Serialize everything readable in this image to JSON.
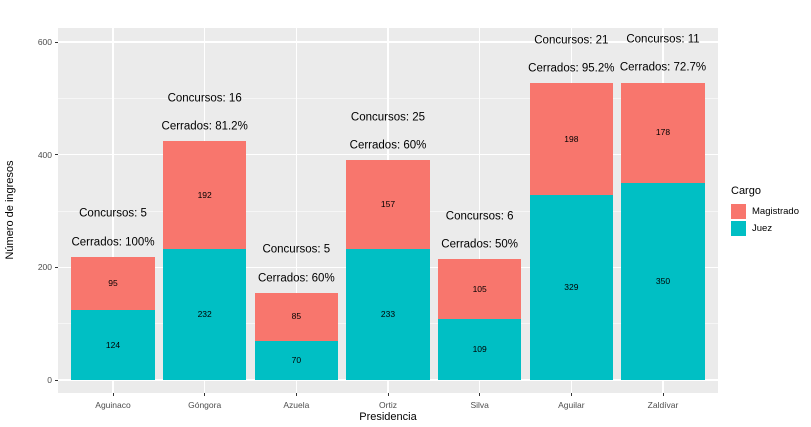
{
  "figure": {
    "background": "#FFFFFF",
    "panel_background": "#EBEBEB",
    "grid_major_color": "#FFFFFF",
    "grid_minor_color": "rgba(255,255,255,0.55)",
    "axis_text_color": "#4D4D4D",
    "tick_color": "#333333"
  },
  "chart_data": {
    "type": "bar",
    "stacked": true,
    "xlabel": "Presidencia",
    "ylabel": "Número de ingresos",
    "categories": [
      "Aguinaco",
      "Góngora",
      "Azuela",
      "Ortiz",
      "Silva",
      "Aguilar",
      "Zaldívar"
    ],
    "series": [
      {
        "name": "Juez",
        "color": "#00BFC4",
        "values": [
          124,
          232,
          70,
          233,
          109,
          329,
          350
        ]
      },
      {
        "name": "Magistrado",
        "color": "#F8766D",
        "values": [
          95,
          192,
          85,
          157,
          105,
          198,
          178
        ]
      }
    ],
    "totals": [
      219,
      424,
      155,
      390,
      214,
      527,
      528
    ],
    "annotations": {
      "concursos": [
        "Concursos: 5",
        "Concursos: 16",
        "Concursos: 5",
        "Concursos: 25",
        "Concursos: 6",
        "Concursos: 21",
        "Concursos: 11"
      ],
      "cerrados": [
        "Cerrados: 100%",
        "Cerrados: 81.2%",
        "Cerrados: 60%",
        "Cerrados: 60%",
        "Cerrados: 50%",
        "Cerrados: 95.2%",
        "Cerrados: 72.7%"
      ]
    },
    "annotation_offset_units": {
      "concursos": 75,
      "cerrados": 25
    },
    "yticks": [
      0,
      200,
      400,
      600
    ],
    "yticks_minor": [
      100,
      300,
      500
    ],
    "ylim": [
      0,
      628
    ],
    "bar_width_frac": 0.91,
    "grid": true,
    "legend_position": "right",
    "legend_title": "Cargo",
    "legend_items": [
      {
        "label": "Magistrado",
        "color": "#F8766D"
      },
      {
        "label": "Juez",
        "color": "#00BFC4"
      }
    ]
  }
}
